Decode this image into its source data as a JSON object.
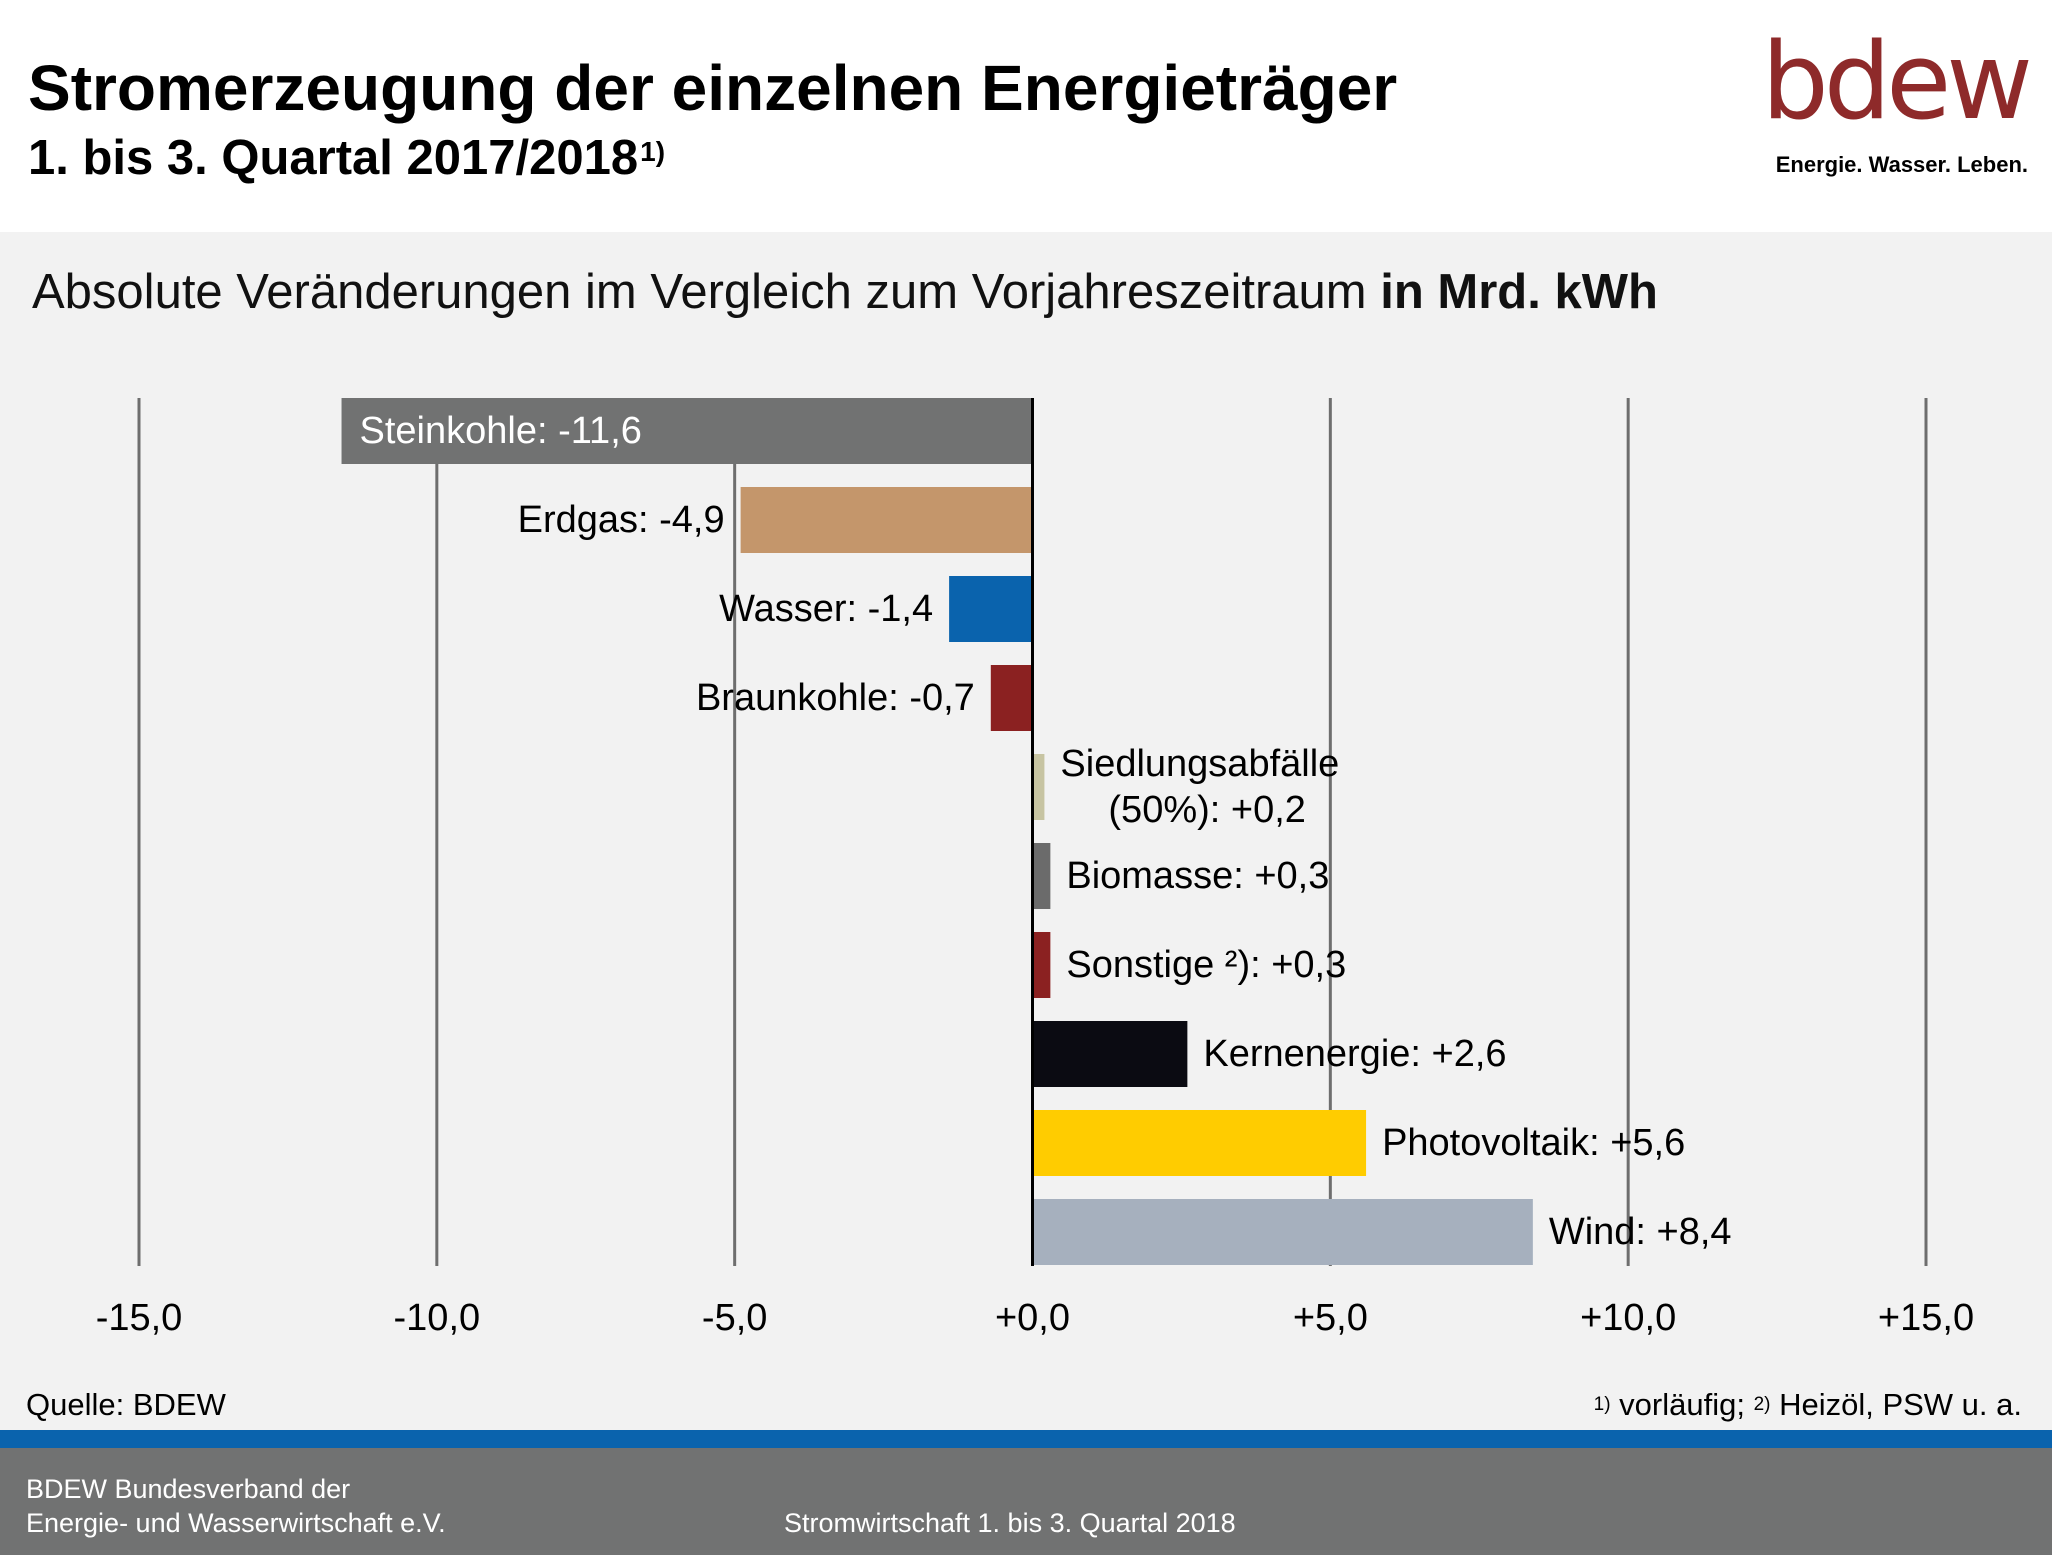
{
  "header": {
    "title": "Stromerzeugung der einzelnen Energieträger",
    "subtitle": "1. bis 3. Quartal 2017/2018",
    "subtitle_sup": "1)",
    "logo_text": "bdew",
    "logo_tagline": "Energie. Wasser. Leben.",
    "logo_color": "#8e2a2a"
  },
  "chart_heading": {
    "normal": "Absolute Veränderungen im Vergleich zum Vorjahreszeitraum ",
    "bold": "in Mrd. kWh"
  },
  "chart_data": {
    "type": "bar",
    "orientation": "horizontal",
    "xlim": [
      -15,
      15
    ],
    "xticks": [
      -15,
      -10,
      -5,
      0,
      5,
      10,
      15
    ],
    "xtick_labels": [
      "-15,0",
      "-10,0",
      "-5,0",
      "+0,0",
      "+5,0",
      "+10,0",
      "+15,0"
    ],
    "grid": true,
    "categories": [
      "Steinkohle",
      "Erdgas",
      "Wasser",
      "Braunkohle",
      "Siedlungsabfälle (50%)",
      "Biomasse",
      "Sonstige ²)",
      "Kernenergie",
      "Photovoltaik",
      "Wind"
    ],
    "values": [
      -11.6,
      -4.9,
      -1.4,
      -0.7,
      0.2,
      0.3,
      0.3,
      2.6,
      5.6,
      8.4
    ],
    "labels": [
      [
        "Steinkohle: -11,6"
      ],
      [
        "Erdgas: -4,9"
      ],
      [
        "Wasser: -1,4"
      ],
      [
        "Braunkohle: -0,7"
      ],
      [
        "Siedlungsabfälle",
        "(50%): +0,2"
      ],
      [
        "Biomasse: +0,3"
      ],
      [
        "Sonstige ²):  +0,3"
      ],
      [
        "Kernenergie: +2,6"
      ],
      [
        "Photovoltaik: +5,6"
      ],
      [
        "Wind: +8,4"
      ]
    ],
    "colors": [
      "#717272",
      "#c4966b",
      "#0a63ad",
      "#8b2121",
      "#c7c4a2",
      "#6b6b6b",
      "#8b2121",
      "#0b0b12",
      "#ffcc00",
      "#a6b0be"
    ],
    "label_inside_first": true
  },
  "source": "Quelle:  BDEW",
  "footnote": {
    "sup1": "1)",
    "text1": " vorläufig;  ",
    "sup2": "2)",
    "text2": " Heizöl, PSW u. a."
  },
  "footer": {
    "org_line1": "BDEW Bundesverband  der",
    "org_line2": "Energie-  und Wasserwirtschaft e.V.",
    "center": "Stromwirtschaft  1. bis 3. Quartal 2018",
    "stripe_color": "#0a63ad",
    "bar_color": "#717272"
  }
}
